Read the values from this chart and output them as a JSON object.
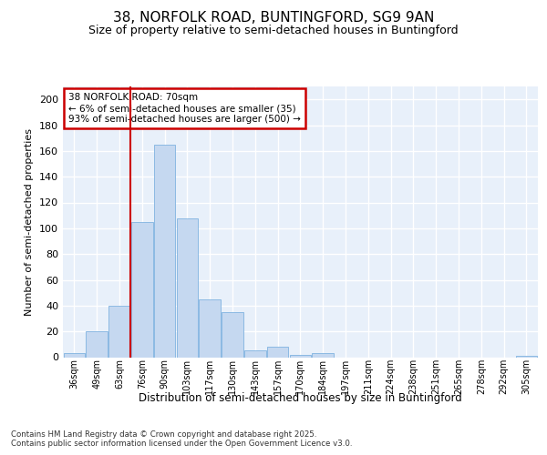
{
  "title_line1": "38, NORFOLK ROAD, BUNTINGFORD, SG9 9AN",
  "title_line2": "Size of property relative to semi-detached houses in Buntingford",
  "xlabel": "Distribution of semi-detached houses by size in Buntingford",
  "ylabel": "Number of semi-detached properties",
  "categories": [
    "36sqm",
    "49sqm",
    "63sqm",
    "76sqm",
    "90sqm",
    "103sqm",
    "117sqm",
    "130sqm",
    "143sqm",
    "157sqm",
    "170sqm",
    "184sqm",
    "197sqm",
    "211sqm",
    "224sqm",
    "238sqm",
    "251sqm",
    "265sqm",
    "278sqm",
    "292sqm",
    "305sqm"
  ],
  "values": [
    3,
    20,
    40,
    105,
    165,
    108,
    45,
    35,
    5,
    8,
    2,
    3,
    0,
    0,
    0,
    0,
    0,
    0,
    0,
    0,
    1
  ],
  "bar_color": "#c5d8f0",
  "bar_edge_color": "#7fb2e0",
  "vline_x": 3.0,
  "vline_color": "#cc0000",
  "annotation_title": "38 NORFOLK ROAD: 70sqm",
  "annotation_line1": "← 6% of semi-detached houses are smaller (35)",
  "annotation_line2": "93% of semi-detached houses are larger (500) →",
  "annotation_box_color": "#cc0000",
  "ylim": [
    0,
    210
  ],
  "yticks": [
    0,
    20,
    40,
    60,
    80,
    100,
    120,
    140,
    160,
    180,
    200
  ],
  "footer": "Contains HM Land Registry data © Crown copyright and database right 2025.\nContains public sector information licensed under the Open Government Licence v3.0.",
  "bg_color": "#dce8f5",
  "plot_bg_color": "#e8f0fa",
  "fig_bg_color": "#ffffff"
}
